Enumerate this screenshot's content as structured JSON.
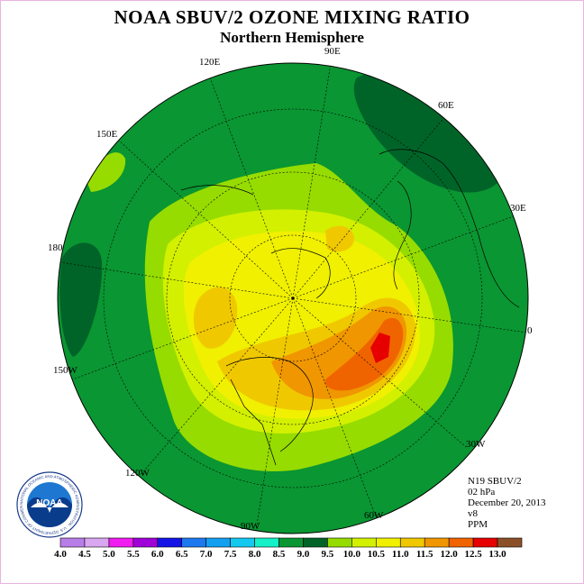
{
  "header": {
    "title": "NOAA SBUV/2 OZONE MIXING RATIO",
    "subtitle": "Northern Hemisphere"
  },
  "map": {
    "projection": "polar stereographic",
    "hemisphere": "north",
    "longitude_labels": [
      "90E",
      "60E",
      "30E",
      "0",
      "30W",
      "60W",
      "90W",
      "120W",
      "150W",
      "180",
      "150E",
      "120E"
    ]
  },
  "info": {
    "instrument": "N19 SBUV/2",
    "level": "02 hPa",
    "date": "December 20, 2013",
    "version": "v8",
    "units": "PPM"
  },
  "legend": {
    "ticks": [
      "4.0",
      "4.5",
      "5.0",
      "5.5",
      "6.0",
      "6.5",
      "7.0",
      "7.5",
      "8.0",
      "8.5",
      "9.0",
      "9.5",
      "10.0",
      "10.5",
      "11.0",
      "11.5",
      "12.0",
      "12.5",
      "13.0"
    ],
    "colors": [
      "#b87ee8",
      "#d9a6f0",
      "#f01cf0",
      "#a000d8",
      "#1414e6",
      "#1e78f0",
      "#14a0f0",
      "#14c8f0",
      "#14f0c8",
      "#0a9632",
      "#006428",
      "#96dc00",
      "#d2f000",
      "#f0f000",
      "#f0c800",
      "#f09600",
      "#f06400",
      "#e60000",
      "#8c5028"
    ]
  },
  "logo": {
    "text": "NOAA",
    "ring_text": "NATIONAL OCEANIC AND ATMOSPHERIC ADMINISTRATION · U.S. DEPARTMENT OF COMMERCE"
  }
}
